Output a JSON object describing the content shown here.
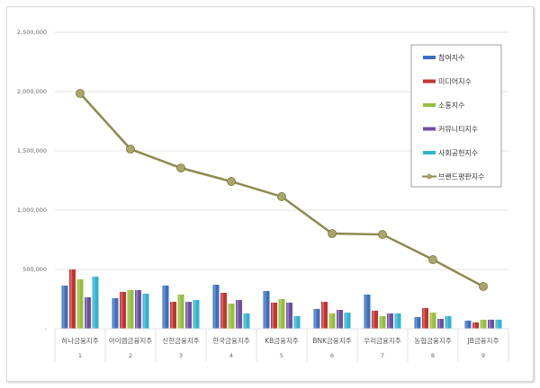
{
  "chart_data": {
    "type": "bar",
    "title": "",
    "xlabel": "",
    "ylabel": "",
    "ylim": [
      0,
      2500000
    ],
    "yticks": [
      0,
      500000,
      1000000,
      1500000,
      2000000,
      2500000
    ],
    "ytick_labels": [
      "-",
      "500,000",
      "1,000,000",
      "1,500,000",
      "2,000,000",
      "2,500,000"
    ],
    "grid": true,
    "legend_position": "top-right",
    "categories": [
      "하나금융지주",
      "아이엠금융지주",
      "신한금융지주",
      "한국금융지주",
      "KB금융지주",
      "BNK금융지주",
      "우리금융지주",
      "농협금융지주",
      "JB금융지주"
    ],
    "category_numbers": [
      "1",
      "2",
      "3",
      "4",
      "5",
      "6",
      "7",
      "8",
      "9"
    ],
    "series": [
      {
        "name": "참여지수",
        "type": "bar",
        "color": "#3a6fc0",
        "values": [
          364000,
          258000,
          364000,
          371000,
          318000,
          167000,
          288000,
          98000,
          68000
        ]
      },
      {
        "name": "미디어지수",
        "type": "bar",
        "color": "#c23531",
        "values": [
          500000,
          311000,
          227000,
          303000,
          220000,
          227000,
          152000,
          174000,
          53000
        ]
      },
      {
        "name": "소통지수",
        "type": "bar",
        "color": "#94bf3c",
        "values": [
          417000,
          326000,
          288000,
          212000,
          250000,
          129000,
          106000,
          136000,
          76000
        ]
      },
      {
        "name": "커뮤니티지수",
        "type": "bar",
        "color": "#6f4fa3",
        "values": [
          265000,
          326000,
          227000,
          242000,
          220000,
          159000,
          129000,
          83000,
          76000
        ]
      },
      {
        "name": "사회공헌지수",
        "type": "bar",
        "color": "#31b3cf",
        "values": [
          440000,
          295000,
          242000,
          129000,
          106000,
          136000,
          129000,
          106000,
          76000
        ]
      },
      {
        "name": "브랜드평판지수",
        "type": "line",
        "color": "#8c8a4e",
        "values": [
          1985000,
          1515000,
          1356000,
          1242000,
          1114000,
          803000,
          795000,
          583000,
          356000
        ]
      }
    ]
  }
}
